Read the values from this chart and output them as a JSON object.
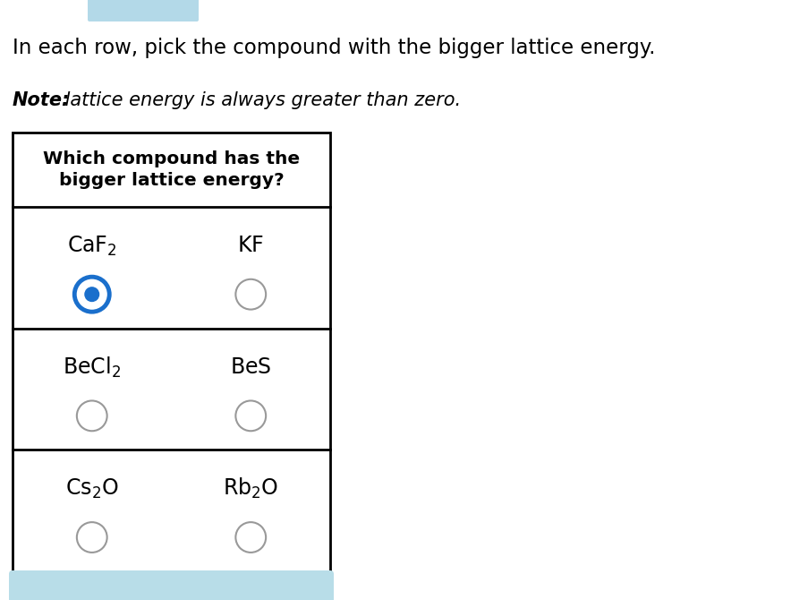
{
  "bg_color": "#ffffff",
  "top_accent_color": "#b3d9e8",
  "title": "In each row, pick the compound with the bigger lattice energy.",
  "note_bold": "Note:",
  "note_rest": " lattice energy is always greater than zero.",
  "table_header_line1": "Which compound has the",
  "table_header_line2": "bigger lattice energy?",
  "rows": [
    {
      "left_main": "CaF",
      "left_sub": "2",
      "left_suffix": "",
      "right_main": "KF",
      "right_sub": "",
      "right_suffix": "",
      "left_selected": true,
      "right_selected": false
    },
    {
      "left_main": "BeCl",
      "left_sub": "2",
      "left_suffix": "",
      "right_main": "BeS",
      "right_sub": "",
      "right_suffix": "",
      "left_selected": false,
      "right_selected": false
    },
    {
      "left_main": "Cs",
      "left_sub": "2",
      "left_suffix": "O",
      "right_main": "Rb",
      "right_sub": "2",
      "right_suffix": "O",
      "left_selected": false,
      "right_selected": false
    }
  ],
  "selected_color": "#1a6fcc",
  "unselected_color": "#999999",
  "bottom_btn_color": "#b8dde8"
}
